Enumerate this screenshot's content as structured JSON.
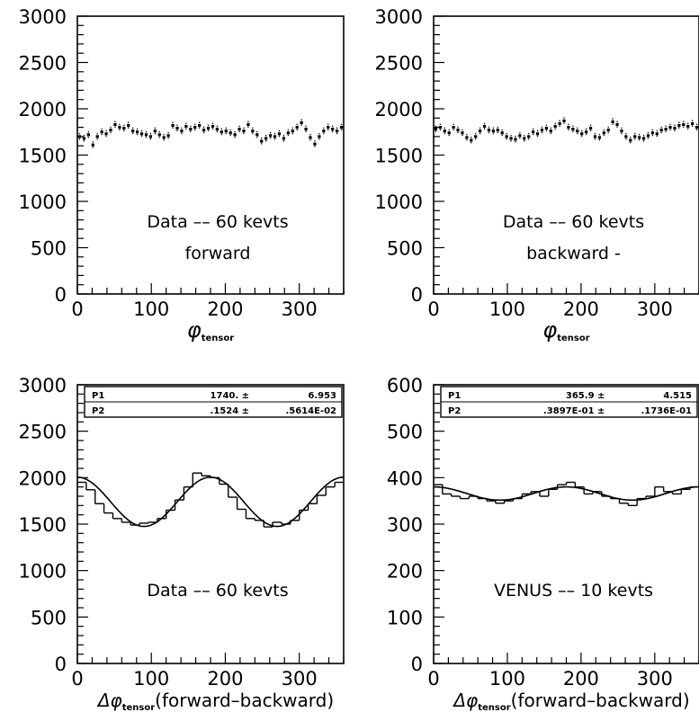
{
  "chart_data": [
    {
      "type": "scatter",
      "x": [
        3,
        9,
        15,
        21,
        27,
        33,
        39,
        45,
        51,
        57,
        63,
        69,
        75,
        81,
        87,
        93,
        99,
        105,
        111,
        117,
        123,
        129,
        135,
        141,
        147,
        153,
        159,
        165,
        171,
        177,
        183,
        189,
        195,
        201,
        207,
        213,
        219,
        225,
        231,
        237,
        243,
        249,
        255,
        261,
        267,
        273,
        279,
        285,
        291,
        297,
        303,
        309,
        315,
        321,
        327,
        333,
        339,
        345,
        351,
        357
      ],
      "y": [
        1700,
        1680,
        1720,
        1610,
        1700,
        1750,
        1730,
        1770,
        1830,
        1800,
        1790,
        1820,
        1760,
        1750,
        1730,
        1720,
        1700,
        1760,
        1720,
        1690,
        1710,
        1820,
        1790,
        1760,
        1810,
        1780,
        1800,
        1820,
        1770,
        1790,
        1810,
        1780,
        1750,
        1760,
        1740,
        1720,
        1780,
        1760,
        1830,
        1760,
        1720,
        1650,
        1680,
        1710,
        1700,
        1730,
        1680,
        1740,
        1760,
        1800,
        1850,
        1780,
        1690,
        1620,
        1700,
        1760,
        1800,
        1780,
        1760,
        1800
      ],
      "xlim": [
        0,
        360
      ],
      "ylim": [
        0,
        3000
      ],
      "x_ticks": [
        "0",
        "100",
        "200",
        "300"
      ],
      "y_ticks": [
        "0",
        "500",
        "1000",
        "1500",
        "2000",
        "2500",
        "3000"
      ],
      "annotations": [
        "Data –– 60 kevts",
        "forward"
      ],
      "xlabel": {
        "main": "φ",
        "sub": "tensor"
      }
    },
    {
      "type": "scatter",
      "x": [
        3,
        9,
        15,
        21,
        27,
        33,
        39,
        45,
        51,
        57,
        63,
        69,
        75,
        81,
        87,
        93,
        99,
        105,
        111,
        117,
        123,
        129,
        135,
        141,
        147,
        153,
        159,
        165,
        171,
        177,
        183,
        189,
        195,
        201,
        207,
        213,
        219,
        225,
        231,
        237,
        243,
        249,
        255,
        261,
        267,
        273,
        279,
        285,
        291,
        297,
        303,
        309,
        315,
        321,
        327,
        333,
        339,
        345,
        351,
        357
      ],
      "y": [
        1780,
        1800,
        1760,
        1740,
        1800,
        1770,
        1740,
        1690,
        1660,
        1700,
        1760,
        1810,
        1770,
        1760,
        1770,
        1740,
        1700,
        1680,
        1670,
        1710,
        1680,
        1700,
        1750,
        1730,
        1770,
        1790,
        1760,
        1810,
        1840,
        1870,
        1800,
        1780,
        1760,
        1730,
        1750,
        1790,
        1700,
        1690,
        1740,
        1770,
        1860,
        1830,
        1760,
        1700,
        1660,
        1700,
        1690,
        1680,
        1710,
        1740,
        1730,
        1770,
        1780,
        1800,
        1790,
        1820,
        1830,
        1810,
        1840,
        1800
      ],
      "xlim": [
        0,
        360
      ],
      "ylim": [
        0,
        3000
      ],
      "x_ticks": [
        "0",
        "100",
        "200",
        "300"
      ],
      "y_ticks": [
        "0",
        "500",
        "1000",
        "1500",
        "2000",
        "2500",
        "3000"
      ],
      "annotations": [
        "Data –– 60 kevts",
        "backward -"
      ],
      "xlabel": {
        "main": "φ",
        "sub": "tensor"
      }
    },
    {
      "type": "bar",
      "bin_edges": [
        0,
        12,
        24,
        36,
        48,
        60,
        72,
        84,
        96,
        108,
        120,
        132,
        144,
        156,
        168,
        180,
        192,
        204,
        216,
        228,
        240,
        252,
        264,
        276,
        288,
        300,
        312,
        324,
        336,
        348,
        360
      ],
      "values": [
        1950,
        1870,
        1720,
        1620,
        1560,
        1520,
        1490,
        1510,
        1520,
        1560,
        1650,
        1760,
        1900,
        2050,
        2020,
        2000,
        1930,
        1790,
        1660,
        1560,
        1540,
        1470,
        1520,
        1500,
        1540,
        1650,
        1720,
        1810,
        1900,
        1950
      ],
      "fit": {
        "p1": 1740,
        "p2": 0.1524,
        "period": 180
      },
      "xlim": [
        0,
        360
      ],
      "ylim": [
        0,
        3000
      ],
      "x_ticks": [
        "0",
        "100",
        "200",
        "300"
      ],
      "y_ticks": [
        "0",
        "500",
        "1000",
        "1500",
        "2000",
        "2500",
        "3000"
      ],
      "stats_box": [
        {
          "name": "P1",
          "value": "1740. ±",
          "error": "6.953"
        },
        {
          "name": "P2",
          "value": ".1524 ±",
          "error": ".5614E-02"
        }
      ],
      "annotations": [
        "Data –– 60 kevts"
      ],
      "xlabel": {
        "pre": "Δφ",
        "sub": "tensor",
        "post": "(forward–backward)"
      }
    },
    {
      "type": "bar",
      "bin_edges": [
        0,
        12,
        24,
        36,
        48,
        60,
        72,
        84,
        96,
        108,
        120,
        132,
        144,
        156,
        168,
        180,
        192,
        204,
        216,
        228,
        240,
        252,
        264,
        276,
        288,
        300,
        312,
        324,
        336,
        348,
        360
      ],
      "values": [
        385,
        365,
        360,
        355,
        360,
        355,
        350,
        345,
        350,
        355,
        365,
        370,
        360,
        375,
        385,
        390,
        380,
        365,
        370,
        360,
        355,
        345,
        340,
        355,
        360,
        380,
        370,
        365,
        375,
        380
      ],
      "fit": {
        "p1": 365.9,
        "p2": 0.03897,
        "period": 180
      },
      "xlim": [
        0,
        360
      ],
      "ylim": [
        0,
        600
      ],
      "x_ticks": [
        "0",
        "100",
        "200",
        "300"
      ],
      "y_ticks": [
        "0",
        "100",
        "200",
        "300",
        "400",
        "500",
        "600"
      ],
      "stats_box": [
        {
          "name": "P1",
          "value": "365.9 ±",
          "error": "4.515"
        },
        {
          "name": "P2",
          "value": ".3897E-01 ±",
          "error": ".1736E-01"
        }
      ],
      "annotations": [
        "VENUS –– 10 kevts"
      ],
      "xlabel": {
        "pre": "Δφ",
        "sub": "tensor",
        "post": "(forward–backward)"
      }
    }
  ]
}
